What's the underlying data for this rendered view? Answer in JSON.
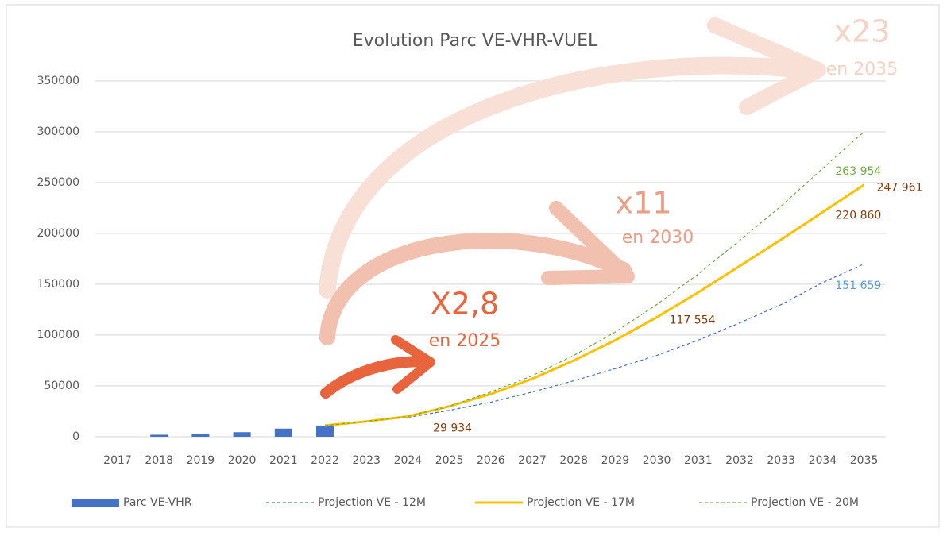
{
  "chart_data": {
    "type": "bar_line",
    "title": "Evolution Parc VE-VHR-VUEL",
    "categories": [
      "2017",
      "2018",
      "2019",
      "2020",
      "2021",
      "2022",
      "2023",
      "2024",
      "2025",
      "2026",
      "2027",
      "2028",
      "2029",
      "2030",
      "2031",
      "2032",
      "2033",
      "2034",
      "2035"
    ],
    "ylim": [
      0,
      350000
    ],
    "yticks": [
      0,
      50000,
      100000,
      150000,
      200000,
      250000,
      300000,
      350000
    ],
    "grid": true,
    "legend": "bottom",
    "series": [
      {
        "name": "Parc VE-VHR",
        "type": "bar",
        "color": "#4472c4",
        "values": [
          null,
          2000,
          2500,
          4500,
          8000,
          11000,
          null,
          null,
          null,
          null,
          null,
          null,
          null,
          null,
          null,
          null,
          null,
          null,
          null
        ]
      },
      {
        "name": "Projection VE - 12M",
        "type": "line",
        "dash": true,
        "width": 1.2,
        "color": "#4472c4",
        "label_color": "#5b9bd5",
        "values": [
          null,
          null,
          null,
          null,
          null,
          11000,
          15000,
          19000,
          26000,
          34000,
          44000,
          55000,
          67000,
          80000,
          95000,
          112000,
          130000,
          151659,
          170000
        ],
        "value_labels": [
          null,
          null,
          null,
          null,
          null,
          null,
          null,
          null,
          null,
          null,
          null,
          null,
          null,
          null,
          null,
          null,
          null,
          "151 659",
          null
        ]
      },
      {
        "name": "Projection VE - 17M",
        "type": "line",
        "dash": false,
        "width": 3,
        "color": "#ffc000",
        "label_color": "#843c0c",
        "values": [
          null,
          null,
          null,
          null,
          null,
          11000,
          15000,
          20000,
          29934,
          42000,
          57000,
          75000,
          95000,
          117554,
          142000,
          168000,
          194000,
          220860,
          247961
        ],
        "value_labels": [
          null,
          null,
          null,
          null,
          null,
          null,
          null,
          null,
          "29 934",
          null,
          null,
          null,
          null,
          "117 554",
          null,
          null,
          null,
          "220 860",
          "247 961"
        ]
      },
      {
        "name": "Projection VE - 20M",
        "type": "line",
        "dash": true,
        "width": 1.2,
        "color": "#70ad47",
        "label_color": "#70ad47",
        "values": [
          null,
          null,
          null,
          null,
          null,
          11000,
          15000,
          20000,
          30000,
          44000,
          60000,
          80000,
          103000,
          130000,
          160000,
          193000,
          227000,
          263954,
          300000
        ],
        "value_labels": [
          null,
          null,
          null,
          null,
          null,
          null,
          null,
          null,
          null,
          null,
          null,
          null,
          null,
          null,
          null,
          null,
          null,
          "263 954",
          null
        ]
      }
    ],
    "annotations": [
      {
        "text": "X2,8",
        "sub": "en 2025",
        "color": "#e8643c"
      },
      {
        "text": "x11",
        "sub": "en 2030",
        "color": "#eb9e85"
      },
      {
        "text": "x23",
        "sub": "en 2035",
        "color": "#f6d2c4"
      }
    ]
  }
}
